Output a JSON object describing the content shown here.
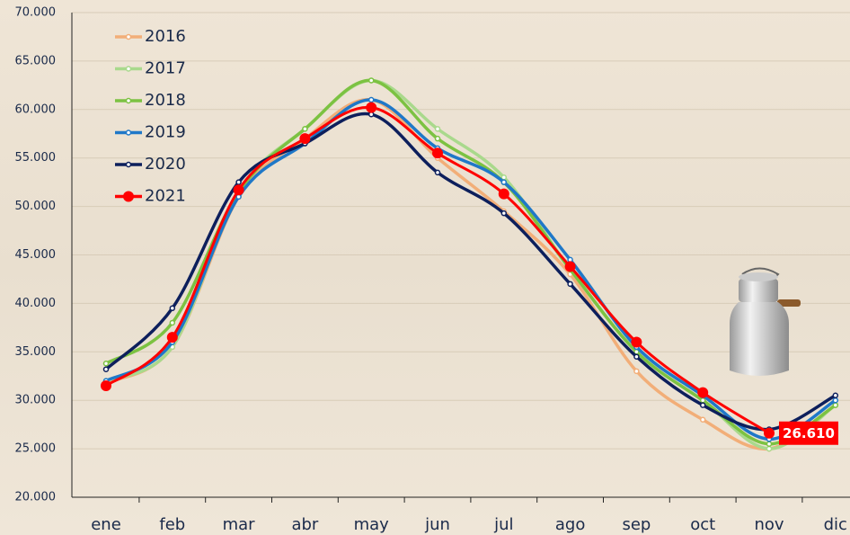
{
  "chart_data": {
    "type": "line",
    "categories": [
      "ene",
      "feb",
      "mar",
      "abr",
      "may",
      "jun",
      "jul",
      "ago",
      "sep",
      "oct",
      "nov",
      "dic"
    ],
    "series": [
      {
        "name": "2016",
        "color": "#f2ae78",
        "values": [
          31800,
          35500,
          51000,
          57000,
          61000,
          55000,
          49500,
          43000,
          33000,
          28000,
          25000,
          29500
        ]
      },
      {
        "name": "2017",
        "color": "#a9d98c",
        "values": [
          32000,
          35500,
          51500,
          58000,
          63000,
          58000,
          53000,
          43500,
          35000,
          30000,
          25000,
          29500
        ]
      },
      {
        "name": "2018",
        "color": "#7cc242",
        "values": [
          33800,
          38000,
          51500,
          58000,
          63000,
          57000,
          52500,
          43500,
          35000,
          30000,
          25500,
          29500
        ]
      },
      {
        "name": "2019",
        "color": "#1f78c8",
        "values": [
          32000,
          36000,
          51000,
          56500,
          61000,
          56000,
          52500,
          44500,
          35500,
          30500,
          26000,
          30000
        ]
      },
      {
        "name": "2020",
        "color": "#0d1f5c",
        "values": [
          33200,
          39500,
          52500,
          56500,
          59500,
          53500,
          49300,
          42000,
          34500,
          29500,
          27000,
          30500
        ]
      },
      {
        "name": "2021",
        "color": "#ff0000",
        "values": [
          31500,
          36500,
          51700,
          57000,
          60200,
          55500,
          51300,
          43800,
          36000,
          30800,
          26610,
          null
        ],
        "value_labels": [
          null,
          null,
          null,
          null,
          null,
          null,
          null,
          null,
          null,
          null,
          "26.610",
          null
        ]
      }
    ],
    "ylim": [
      20000,
      70000
    ],
    "yticks": [
      {
        "value": 20000,
        "label": "20.000"
      },
      {
        "value": 25000,
        "label": "25.000"
      },
      {
        "value": 30000,
        "label": "30.000"
      },
      {
        "value": 35000,
        "label": "35.000"
      },
      {
        "value": 40000,
        "label": "40.000"
      },
      {
        "value": 45000,
        "label": "45.000"
      },
      {
        "value": 50000,
        "label": "50.000"
      },
      {
        "value": 55000,
        "label": "55.000"
      },
      {
        "value": 60000,
        "label": "60.000"
      },
      {
        "value": 65000,
        "label": "65.000"
      },
      {
        "value": 70000,
        "label": "70.000"
      }
    ],
    "grid": true,
    "legend": "top-left"
  }
}
